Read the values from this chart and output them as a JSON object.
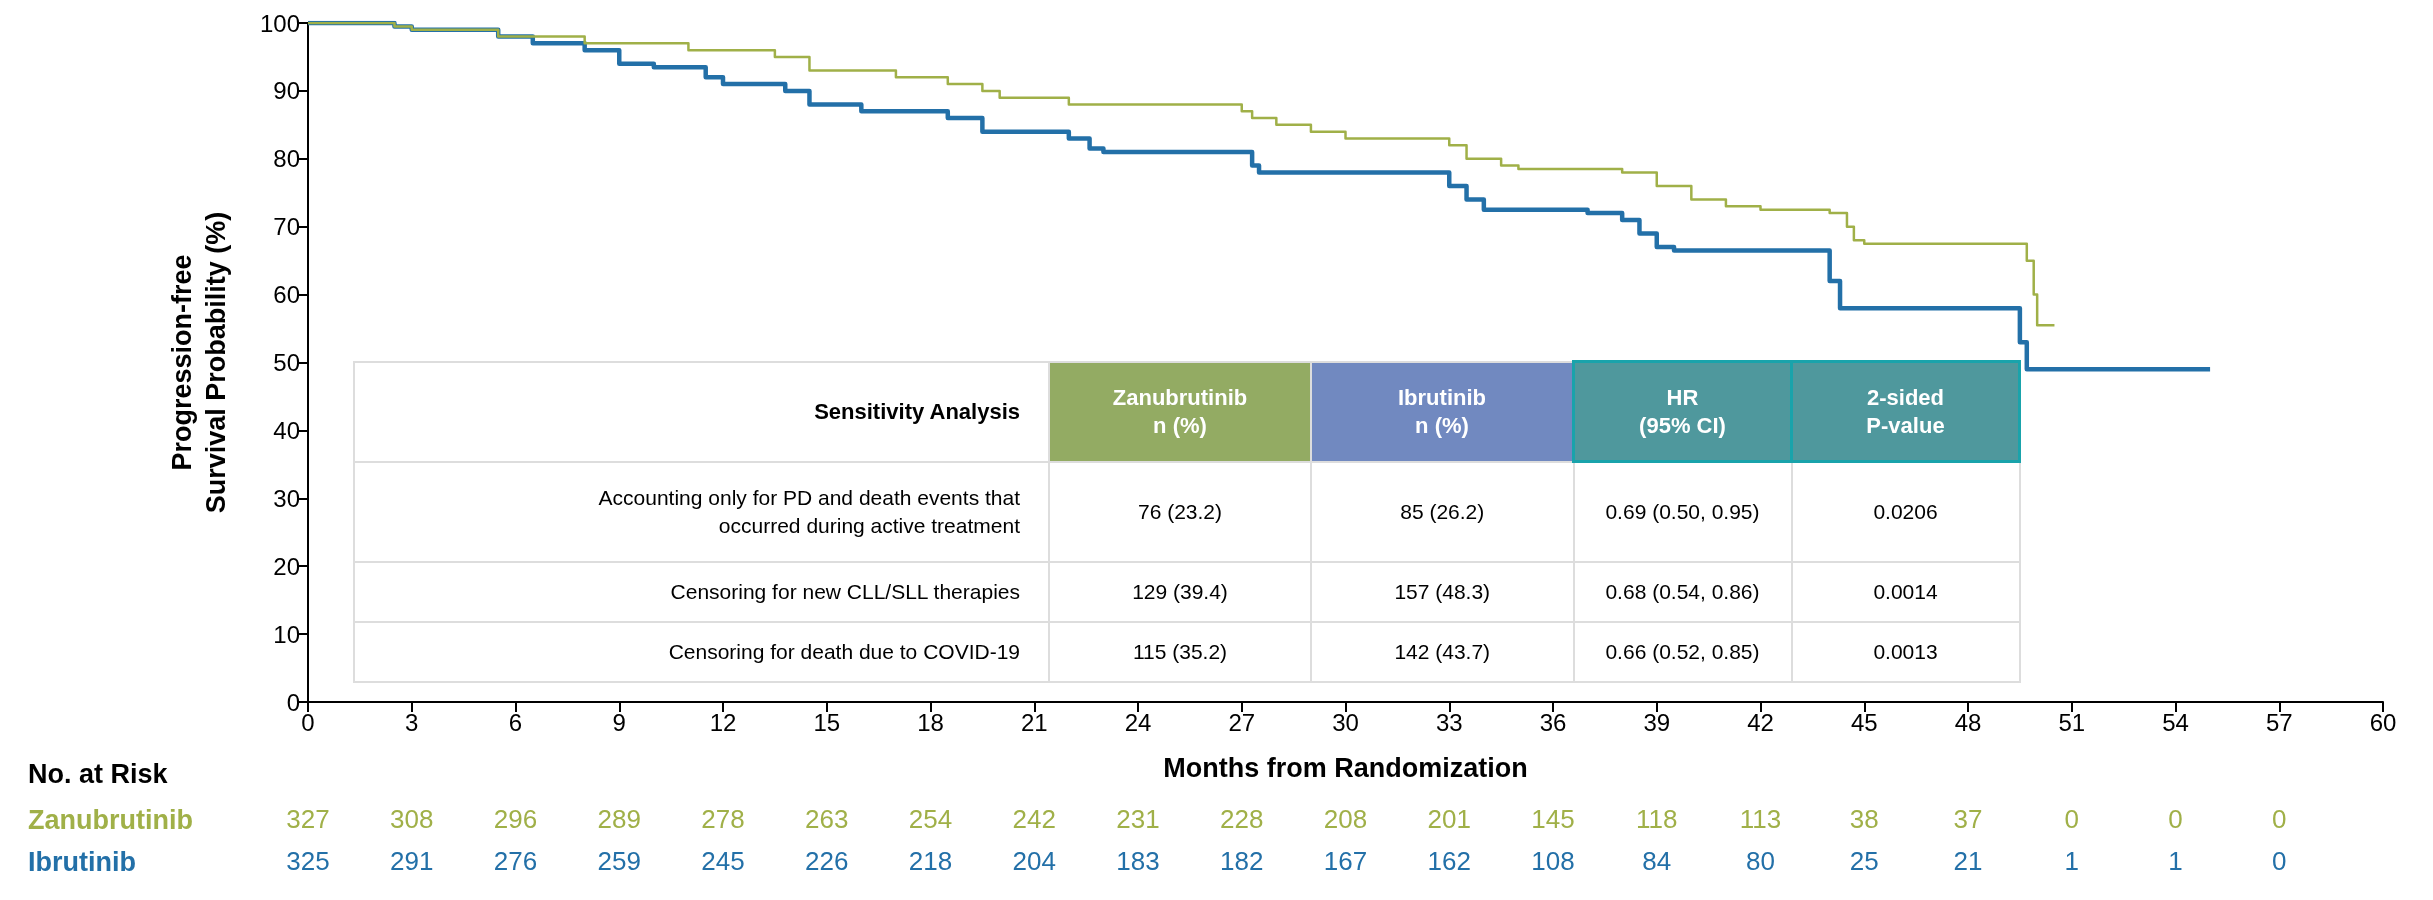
{
  "chart_data": {
    "type": "step",
    "xlabel": "Months from Randomization",
    "ylabel": "Progression-free\nSurvival Probability (%)",
    "xlim": [
      0,
      60
    ],
    "xticks": [
      0,
      3,
      6,
      9,
      12,
      15,
      18,
      21,
      24,
      27,
      30,
      33,
      36,
      39,
      42,
      45,
      48,
      51,
      54,
      57,
      60
    ],
    "ylim": [
      0,
      100
    ],
    "yticks": [
      0,
      10,
      20,
      30,
      40,
      50,
      60,
      70,
      80,
      90,
      100
    ],
    "grid": false,
    "legend": false,
    "series": [
      {
        "name": "Zanubrutinib",
        "color": "#a0b048",
        "x": [
          0,
          2.5,
          3,
          5.5,
          8,
          11,
          13.5,
          14.5,
          17,
          18.5,
          19.5,
          20,
          22,
          27,
          27.3,
          28,
          29,
          30,
          33,
          33.5,
          34.5,
          35,
          38,
          39,
          40,
          41,
          42,
          44,
          44.5,
          44.7,
          45,
          49.5,
          49.7,
          49.9,
          50,
          50.5
        ],
        "values": [
          100,
          99.5,
          99,
          98,
          97,
          96,
          95,
          93,
          92,
          91,
          90,
          89,
          88,
          87,
          86,
          85,
          84,
          83,
          82,
          80,
          79,
          78.5,
          78,
          76,
          74,
          73,
          72.5,
          72,
          70,
          68,
          67.5,
          67.5,
          65,
          60,
          55.5,
          55.5
        ]
      },
      {
        "name": "Ibrutinib",
        "color": "#2370a8",
        "x": [
          0,
          2.5,
          3,
          5.5,
          6.5,
          8,
          9,
          10,
          11.5,
          12,
          13.8,
          14.5,
          16,
          18.5,
          19.5,
          22,
          22.6,
          23,
          27,
          27.3,
          27.5,
          32.5,
          33,
          33.5,
          34,
          37,
          38,
          38.5,
          39,
          39.5,
          43.8,
          44,
          44.3,
          49.2,
          49.5,
          49.7,
          55
        ],
        "values": [
          100,
          99.5,
          99,
          98,
          97,
          96,
          94,
          93.5,
          92,
          91,
          90,
          88,
          87,
          86,
          84,
          83,
          81.5,
          81,
          81,
          79,
          78,
          78,
          76,
          74,
          72.5,
          72,
          71,
          69,
          67,
          66.5,
          66.5,
          62,
          58,
          58,
          53,
          49,
          49
        ]
      }
    ],
    "annotations": [
      "Sensitivity Analysis",
      "Zanubrutinib\nn (%)",
      "Ibrutinib\nn (%)",
      "HR\n(95% CI)",
      "2-sided\nP-value",
      "Accounting only for PD and death events that\noccurred during active treatment",
      "76 (23.2)",
      "85 (26.2)",
      "0.69 (0.50, 0.95)",
      "0.0206",
      "Censoring for new CLL/SLL therapies",
      "129 (39.4)",
      "157 (48.3)",
      "0.68 (0.54, 0.86)",
      "0.0014",
      "Censoring for death due to COVID-19",
      "115 (35.2)",
      "142 (43.7)",
      "0.66 (0.52, 0.85)",
      "0.0013",
      "No. at Risk",
      "327",
      "308",
      "296",
      "289",
      "278",
      "263",
      "254",
      "242",
      "231",
      "228",
      "208",
      "201",
      "145",
      "118",
      "113",
      "38",
      "37",
      "0",
      "0",
      "0",
      "325",
      "291",
      "276",
      "259",
      "245",
      "226",
      "218",
      "204",
      "183",
      "182",
      "167",
      "162",
      "108",
      "84",
      "80",
      "25",
      "21",
      "1",
      "1",
      "0"
    ]
  }
}
